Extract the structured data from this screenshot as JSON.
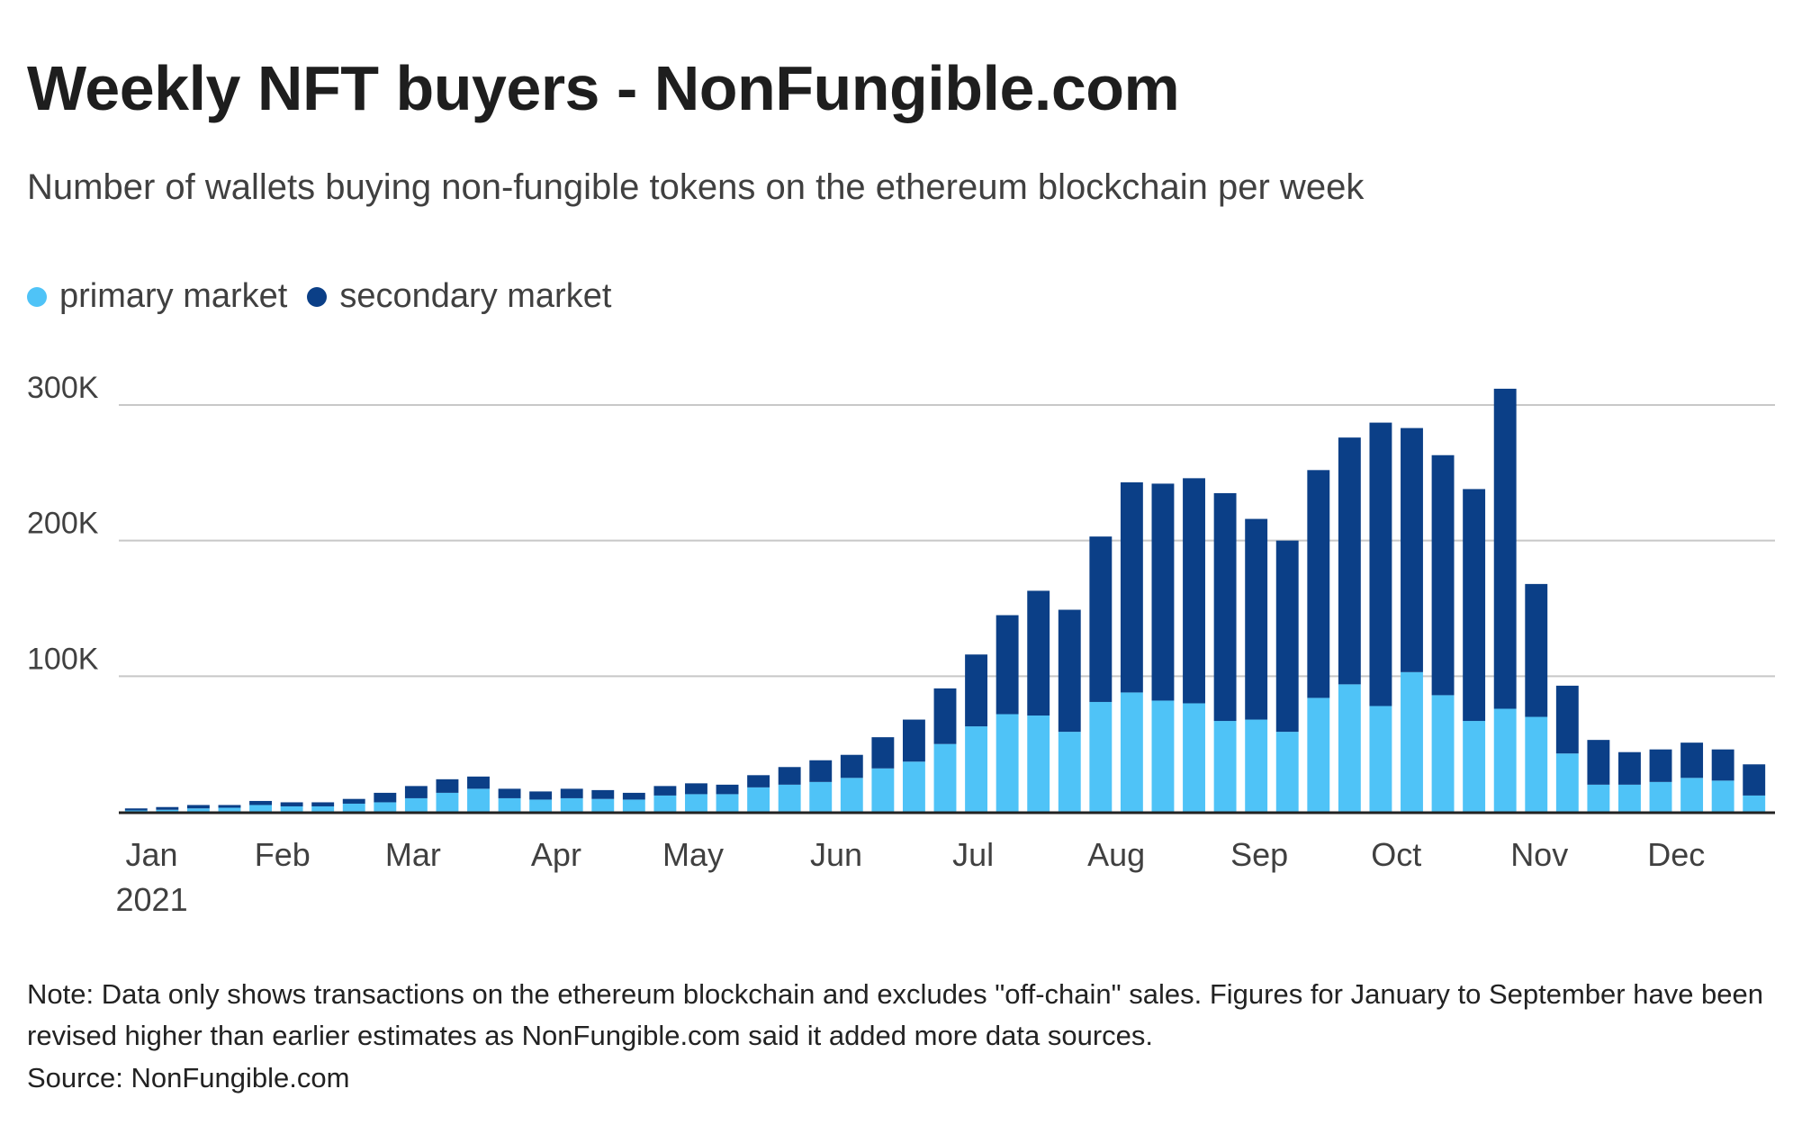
{
  "chart_data": {
    "type": "bar",
    "stacked": true,
    "title": "Weekly NFT buyers - NonFungible.com",
    "subtitle": "Number of wallets buying non-fungible tokens on the ethereum blockchain per week",
    "xlabel": "",
    "ylabel": "",
    "ylim": [
      0,
      330000
    ],
    "y_ticks": [
      100000,
      200000,
      300000
    ],
    "y_tick_labels": [
      "100K",
      "200K",
      "300K"
    ],
    "x_month_labels": [
      "Jan",
      "Feb",
      "Mar",
      "Apr",
      "May",
      "Jun",
      "Jul",
      "Aug",
      "Sep",
      "Oct",
      "Nov",
      "Dec"
    ],
    "x_month_week_index": [
      0.5,
      4.7,
      8.9,
      13.5,
      17.9,
      22.5,
      26.9,
      31.5,
      36.1,
      40.5,
      45.1,
      49.5
    ],
    "year_label": "2021",
    "legend_position": "top-left",
    "grid": true,
    "colors": {
      "primary": "#4fc3f7",
      "secondary": "#0b3f87"
    },
    "series": [
      {
        "name": "primary market",
        "color": "#4fc3f7",
        "values": [
          1000,
          1500,
          2500,
          3000,
          5000,
          4000,
          4000,
          6000,
          7000,
          10000,
          14000,
          17000,
          10000,
          9000,
          10000,
          9500,
          9000,
          12000,
          13000,
          13000,
          18000,
          20000,
          22000,
          25000,
          32000,
          37000,
          50000,
          63000,
          72000,
          71000,
          59000,
          81000,
          88000,
          82000,
          80000,
          67000,
          68000,
          59000,
          84000,
          94000,
          78000,
          103000,
          86000,
          67000,
          76000,
          70000,
          43000,
          20000,
          20000,
          22000,
          25000,
          23000,
          12000
        ]
      },
      {
        "name": "secondary market",
        "color": "#0b3f87",
        "values": [
          1500,
          2000,
          2500,
          2000,
          3000,
          3000,
          3000,
          3500,
          7000,
          9000,
          10000,
          9000,
          7000,
          6000,
          7000,
          6500,
          5000,
          7000,
          8000,
          7000,
          9000,
          13000,
          16000,
          17000,
          23000,
          31000,
          41000,
          53000,
          73000,
          92000,
          90000,
          122000,
          155000,
          160000,
          166000,
          168000,
          148000,
          141000,
          168000,
          182000,
          209000,
          180000,
          177000,
          171000,
          236000,
          98000,
          50000,
          33000,
          24000,
          24000,
          26000,
          23000,
          23000
        ]
      }
    ]
  },
  "note": "Note: Data only shows transactions on the ethereum blockchain and excludes \"off-chain\" sales. Figures for January to September have been revised higher than earlier estimates as NonFungible.com said it added more data sources.",
  "source": "Source: NonFungible.com"
}
